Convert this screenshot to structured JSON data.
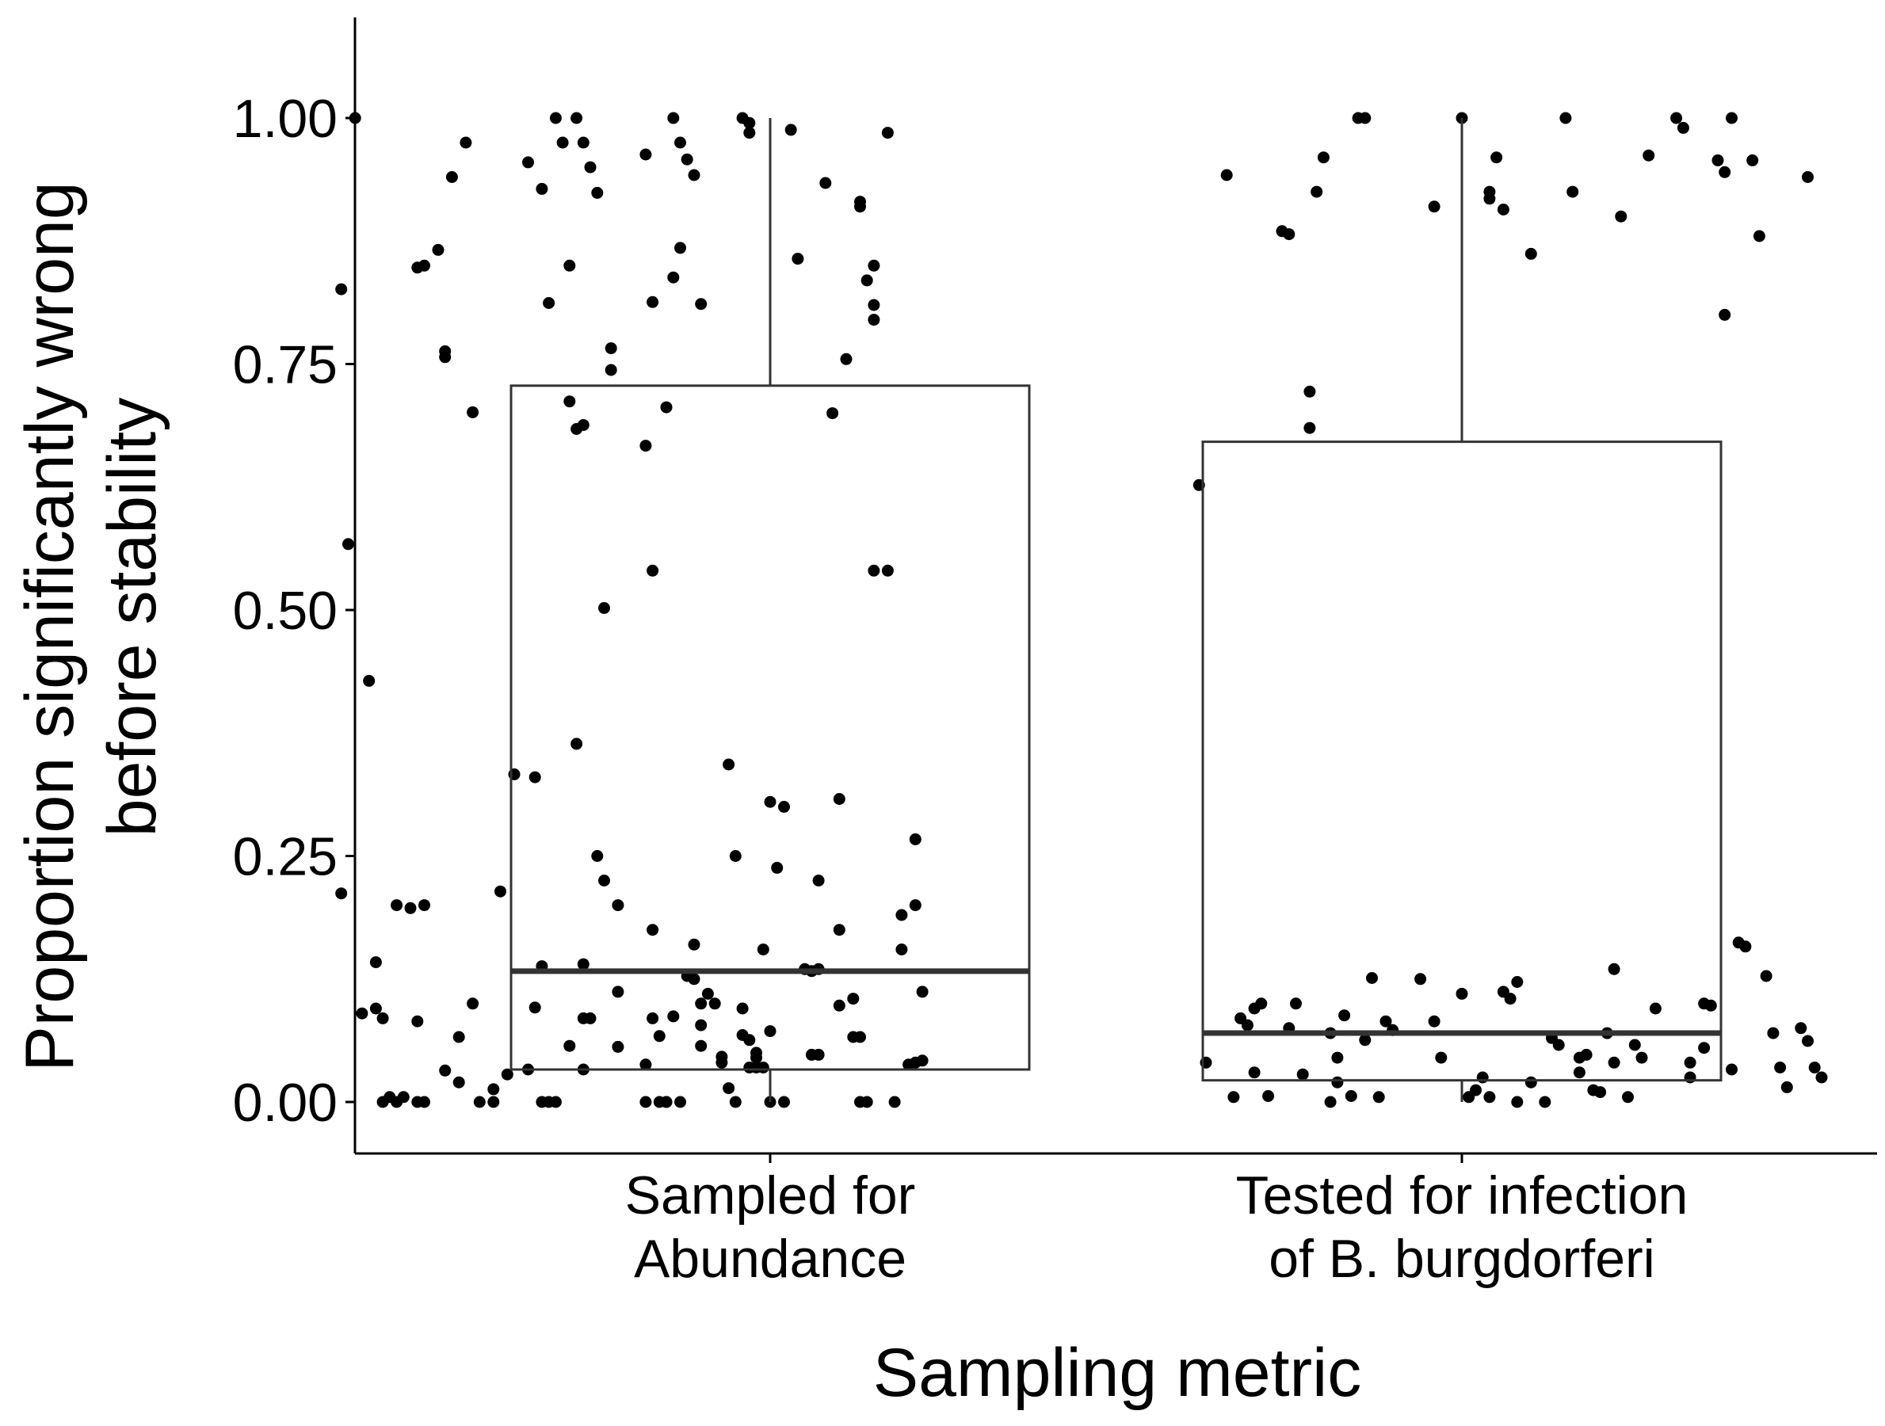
{
  "chart_data": {
    "type": "boxplot",
    "title": "",
    "xlabel": "Sampling metric",
    "ylabel_lines": [
      "Proportion significantly wrong",
      "before stability"
    ],
    "ylim": [
      -0.055,
      1.1
    ],
    "yticks": [
      0,
      0.25,
      0.5,
      0.75,
      1.0
    ],
    "ytick_labels": [
      "0.00",
      "0.25",
      "0.50",
      "0.75",
      "1.00"
    ],
    "grid": false,
    "legend": "none",
    "point_color": "#000000",
    "box_color": "#333333",
    "categories": [
      {
        "label_lines": [
          "Sampled for",
          "Abundance"
        ],
        "box": {
          "whisker_low": 0.0,
          "q1": 0.033,
          "median": 0.133,
          "q3": 0.728,
          "whisker_high": 1.0
        },
        "points": [
          [
            0.38,
            0.826
          ],
          [
            0.4,
            1.0
          ],
          [
            0.39,
            0.567
          ],
          [
            0.42,
            0.428
          ],
          [
            0.38,
            0.212
          ],
          [
            0.43,
            0.142
          ],
          [
            0.41,
            0.09
          ],
          [
            0.43,
            0.095
          ],
          [
            0.44,
            0.085
          ],
          [
            0.46,
            0.2
          ],
          [
            0.48,
            0.197
          ],
          [
            0.5,
            0.2
          ],
          [
            0.52,
            0.866
          ],
          [
            0.49,
            0.848
          ],
          [
            0.5,
            0.85
          ],
          [
            0.53,
            0.763
          ],
          [
            0.53,
            0.757
          ],
          [
            0.57,
            0.701
          ],
          [
            0.54,
            0.94
          ],
          [
            0.56,
            0.975
          ],
          [
            0.49,
            0.0
          ],
          [
            0.47,
            0.005
          ],
          [
            0.46,
            0.0
          ],
          [
            0.44,
            0.0
          ],
          [
            0.45,
            0.005
          ],
          [
            0.49,
            0.082
          ],
          [
            0.5,
            0.0
          ],
          [
            0.53,
            0.032
          ],
          [
            0.55,
            0.02
          ],
          [
            0.55,
            0.066
          ],
          [
            0.57,
            0.1
          ],
          [
            0.58,
            0.0
          ],
          [
            0.6,
            0.0
          ],
          [
            0.6,
            0.013
          ],
          [
            0.61,
            0.214
          ],
          [
            0.62,
            0.028
          ],
          [
            0.63,
            0.333
          ],
          [
            0.65,
            0.033
          ],
          [
            0.66,
            0.096
          ],
          [
            0.67,
            0.0
          ],
          [
            0.68,
            0.0
          ],
          [
            0.69,
            0.0
          ],
          [
            0.67,
            0.138
          ],
          [
            0.66,
            0.33
          ],
          [
            0.65,
            0.955
          ],
          [
            0.67,
            0.928
          ],
          [
            0.68,
            0.812
          ],
          [
            0.69,
            1.0
          ],
          [
            0.7,
            0.975
          ],
          [
            0.71,
            0.85
          ],
          [
            0.72,
            1.0
          ],
          [
            0.73,
            0.975
          ],
          [
            0.74,
            0.95
          ],
          [
            0.75,
            0.924
          ],
          [
            0.71,
            0.712
          ],
          [
            0.72,
            0.684
          ],
          [
            0.73,
            0.688
          ],
          [
            0.72,
            0.364
          ],
          [
            0.73,
            0.14
          ],
          [
            0.73,
            0.085
          ],
          [
            0.73,
            0.033
          ],
          [
            0.74,
            0.085
          ],
          [
            0.71,
            0.057
          ],
          [
            0.77,
            0.766
          ],
          [
            0.77,
            0.744
          ],
          [
            0.76,
            0.502
          ],
          [
            0.75,
            0.25
          ],
          [
            0.76,
            0.225
          ],
          [
            0.78,
            0.2
          ],
          [
            0.78,
            0.112
          ],
          [
            0.78,
            0.056
          ],
          [
            0.82,
            0.963
          ],
          [
            0.83,
            0.813
          ],
          [
            0.82,
            0.667
          ],
          [
            0.85,
            0.706
          ],
          [
            0.83,
            0.54
          ],
          [
            0.83,
            0.175
          ],
          [
            0.83,
            0.085
          ],
          [
            0.82,
            0.038
          ],
          [
            0.82,
            0.0
          ],
          [
            0.84,
            0.067
          ],
          [
            0.84,
            0.0
          ],
          [
            0.85,
            0.0
          ],
          [
            0.85,
            0.0
          ],
          [
            0.86,
            0.087
          ],
          [
            0.87,
            0.0
          ],
          [
            0.86,
            1.0
          ],
          [
            0.87,
            0.975
          ],
          [
            0.88,
            0.958
          ],
          [
            0.87,
            0.868
          ],
          [
            0.86,
            0.838
          ],
          [
            0.89,
            0.942
          ],
          [
            0.88,
            0.128
          ],
          [
            0.89,
            0.125
          ],
          [
            0.89,
            0.16
          ],
          [
            0.9,
            0.1
          ],
          [
            0.9,
            0.078
          ],
          [
            0.9,
            0.057
          ],
          [
            0.91,
            0.11
          ],
          [
            0.92,
            0.1
          ],
          [
            0.9,
            0.811
          ],
          [
            0.93,
            0.046
          ],
          [
            0.93,
            0.04
          ],
          [
            0.94,
            0.014
          ],
          [
            0.95,
            0.0
          ],
          [
            0.94,
            0.343
          ],
          [
            0.95,
            0.25
          ],
          [
            0.96,
            1.0
          ],
          [
            0.97,
            0.995
          ],
          [
            0.97,
            0.985
          ],
          [
            0.96,
            0.095
          ],
          [
            0.96,
            0.068
          ],
          [
            0.97,
            0.063
          ],
          [
            0.97,
            0.035
          ],
          [
            0.98,
            0.035
          ],
          [
            0.98,
            0.05
          ],
          [
            0.98,
            0.045
          ],
          [
            0.99,
            0.035
          ],
          [
            0.99,
            0.155
          ],
          [
            1.0,
            0.305
          ],
          [
            1.0,
            0.072
          ],
          [
            1.0,
            0.0
          ],
          [
            1.01,
            0.238
          ],
          [
            1.02,
            0.3
          ],
          [
            1.02,
            0.0
          ],
          [
            1.03,
            0.988
          ],
          [
            1.04,
            0.857
          ],
          [
            1.05,
            0.135
          ],
          [
            1.06,
            0.048
          ],
          [
            1.06,
            0.133
          ],
          [
            1.07,
            0.225
          ],
          [
            1.07,
            0.048
          ],
          [
            1.07,
            0.135
          ],
          [
            1.08,
            0.934
          ],
          [
            1.09,
            0.7
          ],
          [
            1.1,
            0.175
          ],
          [
            1.1,
            0.098
          ],
          [
            1.1,
            0.308
          ],
          [
            1.11,
            0.755
          ],
          [
            1.12,
            0.066
          ],
          [
            1.12,
            0.105
          ],
          [
            1.13,
            0.915
          ],
          [
            1.13,
            0.91
          ],
          [
            1.14,
            0.835
          ],
          [
            1.15,
            0.85
          ],
          [
            1.15,
            0.81
          ],
          [
            1.15,
            0.795
          ],
          [
            1.15,
            0.54
          ],
          [
            1.17,
            0.54
          ],
          [
            1.13,
            0.0
          ],
          [
            1.14,
            0.0
          ],
          [
            1.13,
            0.066
          ],
          [
            1.17,
            0.985
          ],
          [
            1.18,
            0.0
          ],
          [
            1.19,
            0.155
          ],
          [
            1.19,
            0.19
          ],
          [
            1.2,
            0.038
          ],
          [
            1.21,
            0.2
          ],
          [
            1.21,
            0.267
          ],
          [
            1.21,
            0.04
          ],
          [
            1.22,
            0.112
          ],
          [
            1.22,
            0.042
          ]
        ]
      },
      {
        "label_lines": [
          "Tested for infection",
          "of B. burgdorferi"
        ],
        "box": {
          "whisker_low": 0.0,
          "q1": 0.022,
          "median": 0.07,
          "q3": 0.671,
          "whisker_high": 1.0
        },
        "points": [
          [
            1.62,
            0.627
          ],
          [
            1.63,
            0.04
          ],
          [
            1.66,
            0.942
          ],
          [
            1.67,
            0.005
          ],
          [
            1.68,
            0.085
          ],
          [
            1.69,
            0.078
          ],
          [
            1.7,
            0.095
          ],
          [
            1.7,
            0.03
          ],
          [
            1.71,
            0.1
          ],
          [
            1.72,
            0.006
          ],
          [
            1.74,
            0.885
          ],
          [
            1.75,
            0.882
          ],
          [
            1.75,
            0.075
          ],
          [
            1.76,
            0.1
          ],
          [
            1.77,
            0.028
          ],
          [
            1.78,
            0.685
          ],
          [
            1.78,
            0.722
          ],
          [
            1.79,
            0.925
          ],
          [
            1.8,
            0.96
          ],
          [
            1.81,
            0.0
          ],
          [
            1.81,
            0.07
          ],
          [
            1.82,
            0.045
          ],
          [
            1.82,
            0.02
          ],
          [
            1.83,
            0.088
          ],
          [
            1.84,
            0.006
          ],
          [
            1.85,
            1.0
          ],
          [
            1.86,
            1.0
          ],
          [
            1.86,
            0.063
          ],
          [
            1.87,
            0.126
          ],
          [
            1.88,
            0.005
          ],
          [
            1.89,
            0.082
          ],
          [
            1.9,
            0.073
          ],
          [
            1.96,
            0.91
          ],
          [
            1.94,
            0.125
          ],
          [
            1.96,
            0.082
          ],
          [
            1.97,
            0.045
          ],
          [
            2.0,
            1.0
          ],
          [
            2.0,
            0.11
          ],
          [
            2.01,
            0.005
          ],
          [
            2.02,
            0.012
          ],
          [
            2.03,
            0.025
          ],
          [
            2.04,
            0.005
          ],
          [
            2.04,
            0.918
          ],
          [
            2.04,
            0.925
          ],
          [
            2.05,
            0.96
          ],
          [
            2.06,
            0.907
          ],
          [
            2.06,
            0.112
          ],
          [
            2.07,
            0.105
          ],
          [
            2.08,
            0.0
          ],
          [
            2.08,
            0.122
          ],
          [
            2.1,
            0.862
          ],
          [
            2.1,
            0.02
          ],
          [
            2.12,
            0.0
          ],
          [
            2.13,
            0.065
          ],
          [
            2.14,
            0.058
          ],
          [
            2.15,
            1.0
          ],
          [
            2.16,
            0.925
          ],
          [
            2.17,
            0.045
          ],
          [
            2.17,
            0.03
          ],
          [
            2.18,
            0.048
          ],
          [
            2.19,
            0.012
          ],
          [
            2.2,
            0.01
          ],
          [
            2.21,
            0.07
          ],
          [
            2.22,
            0.135
          ],
          [
            2.22,
            0.04
          ],
          [
            2.23,
            0.9
          ],
          [
            2.24,
            0.005
          ],
          [
            2.25,
            0.058
          ],
          [
            2.26,
            0.045
          ],
          [
            2.27,
            0.962
          ],
          [
            2.28,
            0.095
          ],
          [
            2.31,
            1.0
          ],
          [
            2.32,
            0.99
          ],
          [
            2.33,
            0.04
          ],
          [
            2.33,
            0.025
          ],
          [
            2.35,
            0.1
          ],
          [
            2.35,
            0.055
          ],
          [
            2.36,
            0.098
          ],
          [
            2.37,
            0.957
          ],
          [
            2.38,
            0.8
          ],
          [
            2.38,
            0.945
          ],
          [
            2.39,
            0.033
          ],
          [
            2.39,
            1.0
          ],
          [
            2.4,
            0.162
          ],
          [
            2.41,
            0.158
          ],
          [
            2.42,
            0.957
          ],
          [
            2.43,
            0.88
          ],
          [
            2.44,
            0.128
          ],
          [
            2.45,
            0.07
          ],
          [
            2.46,
            0.035
          ],
          [
            2.47,
            0.015
          ],
          [
            2.49,
            0.075
          ],
          [
            2.5,
            0.94
          ],
          [
            2.5,
            0.062
          ],
          [
            2.51,
            0.035
          ],
          [
            2.52,
            0.025
          ]
        ]
      }
    ]
  }
}
